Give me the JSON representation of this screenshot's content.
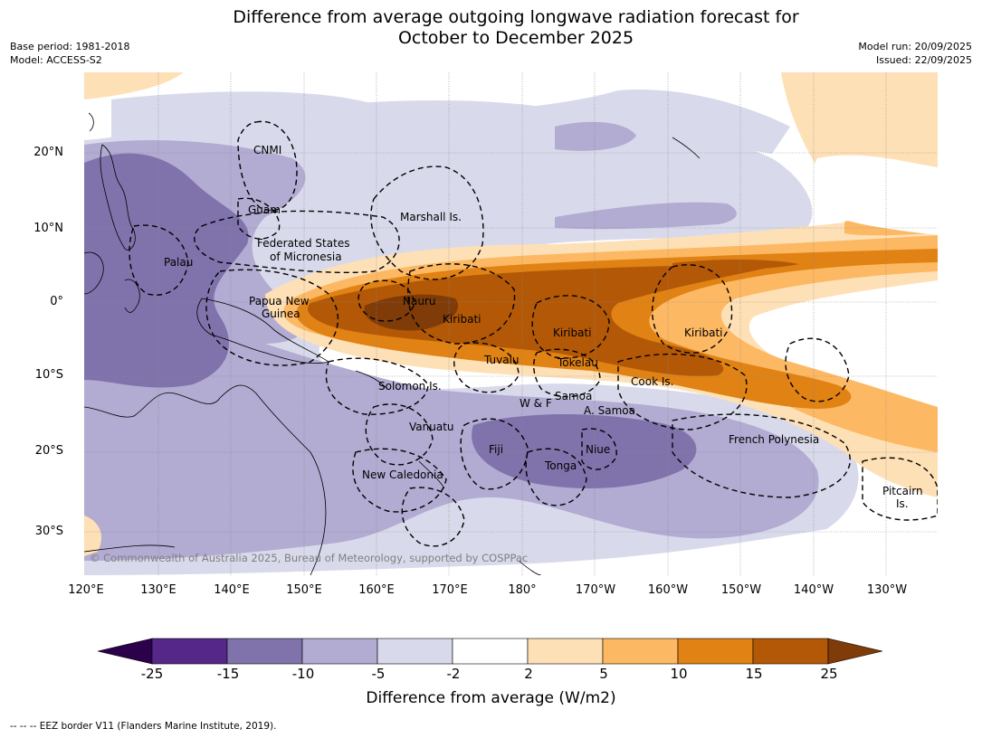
{
  "title": {
    "line1": "Difference from average outgoing longwave radiation forecast for",
    "line2": "October to December 2025"
  },
  "meta": {
    "base_period": "Base period: 1981-2018",
    "model": "Model: ACCESS-S2",
    "model_run": "Model run: 20/09/2025",
    "issued": "Issued: 22/09/2025"
  },
  "map": {
    "lat_labels": [
      "20°N",
      "10°N",
      "0°",
      "10°S",
      "20°S",
      "30°S"
    ],
    "lon_labels": [
      "120°E",
      "130°E",
      "140°E",
      "150°E",
      "160°E",
      "170°E",
      "180°",
      "170°W",
      "160°W",
      "150°W",
      "140°W",
      "130°W"
    ],
    "regions": {
      "cnmi": "CNMI",
      "guam": "Guam",
      "marshall": "Marshall Is.",
      "fsm_1": "Federated States",
      "fsm_2": "of Micronesia",
      "palau": "Palau",
      "png_1": "Papua New",
      "png_2": "Guinea",
      "nauru": "Nauru",
      "kiribati_w": "Kiribati",
      "kiribati_c": "Kiribati",
      "kiribati_e": "Kiribati",
      "tuvalu": "Tuvalu",
      "tokelau": "Tokelau",
      "cook": "Cook Is.",
      "solomon": "Solomon Is.",
      "samoa": "Samoa",
      "wf": "W & F",
      "asamoa": "A. Samoa",
      "vanuatu": "Vanuatu",
      "fiji": "Fiji",
      "niue": "Niue",
      "tonga": "Tonga",
      "french_polynesia": "French Polynesia",
      "new_caledonia": "New Caledonia",
      "pitcairn_1": "Pitcairn",
      "pitcairn_2": "Is."
    },
    "copyright": "© Commonwealth of Australia 2025, Bureau of Meteorology, supported by COSPPac"
  },
  "colorbar": {
    "ticks": [
      "-25",
      "-15",
      "-10",
      "-5",
      "-2",
      "2",
      "5",
      "10",
      "15",
      "25"
    ],
    "colors": [
      "#2d004b",
      "#542788",
      "#8073ac",
      "#b2abd2",
      "#d8daeb",
      "#ffffff",
      "#fee0b6",
      "#fdb863",
      "#e08214",
      "#b35806",
      "#7f3b08"
    ],
    "label": "Difference from average (W/m2)"
  },
  "footer": "--  --  -- EEZ border V11 (Flanders Marine Institute, 2019)."
}
